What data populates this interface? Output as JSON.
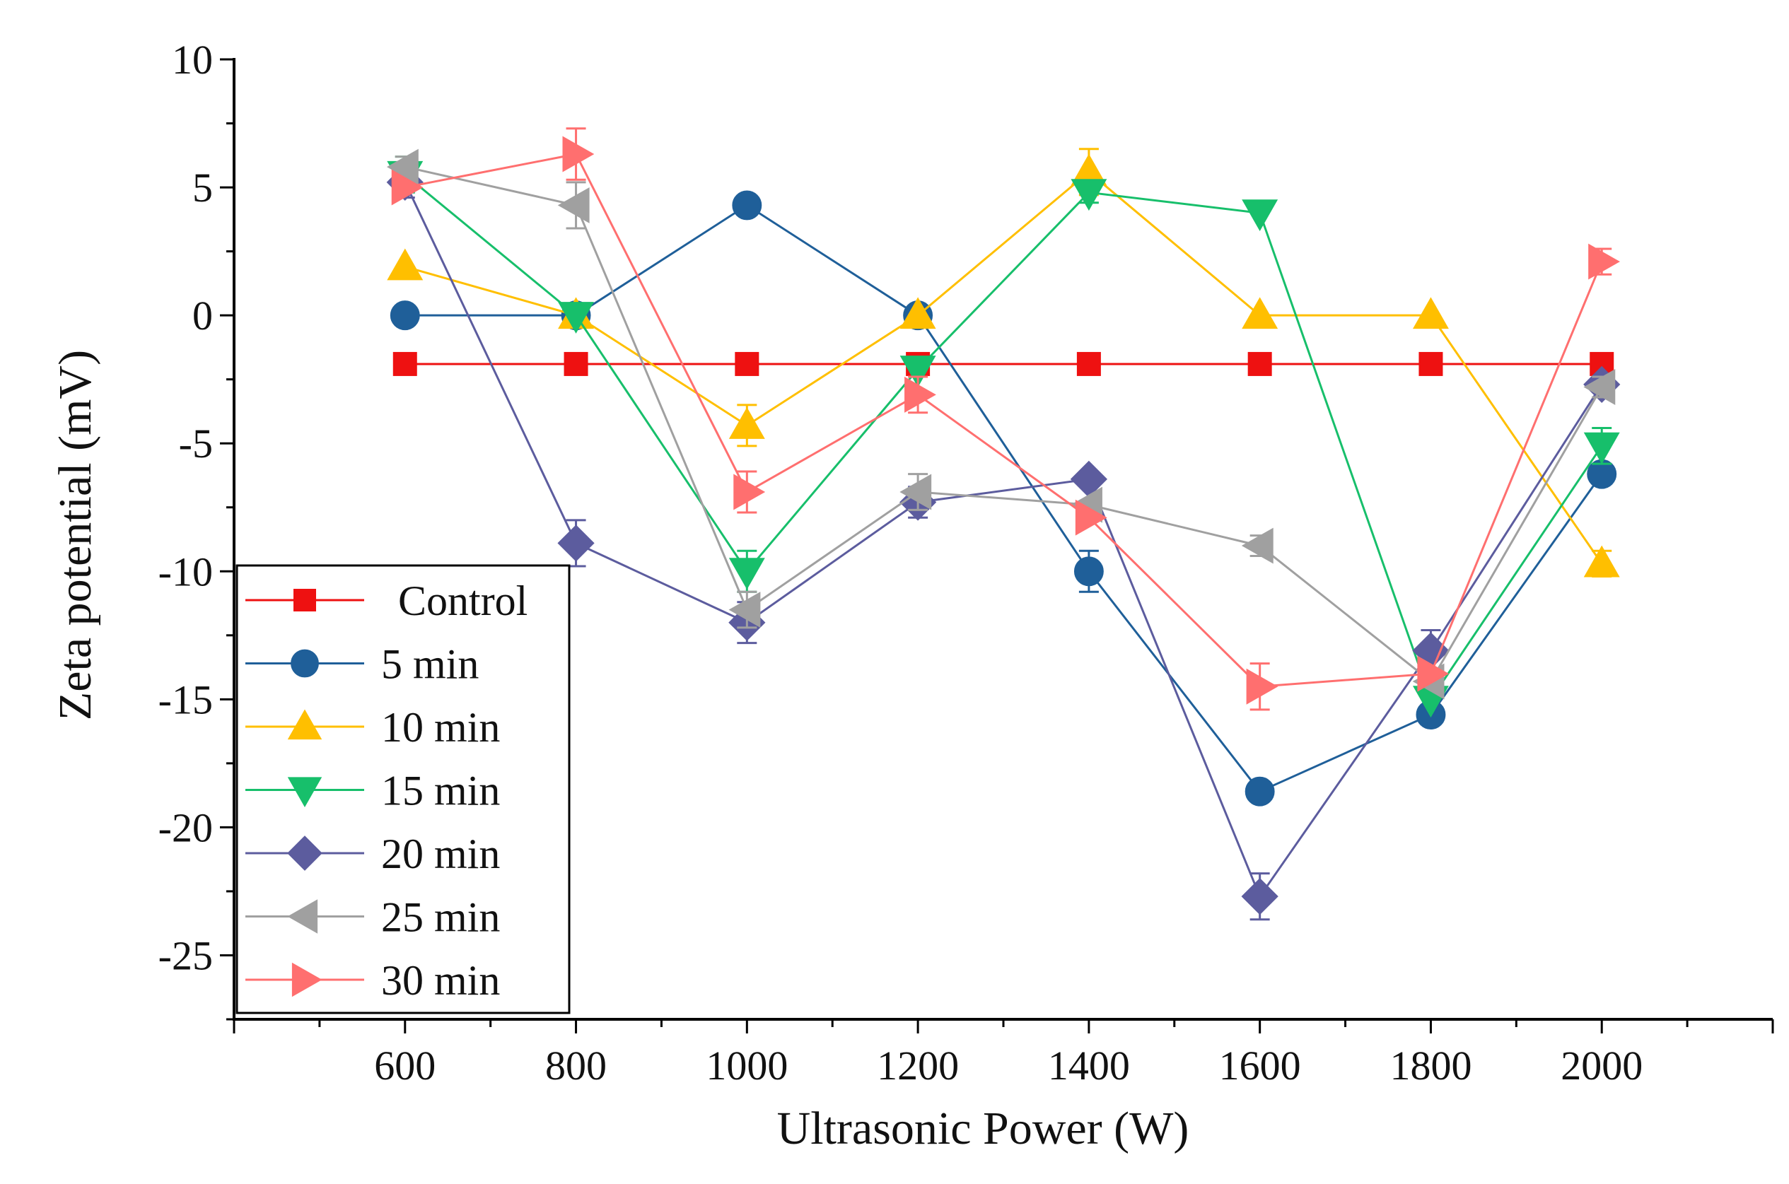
{
  "chart_data": {
    "type": "line",
    "title": "",
    "xlabel": "Ultrasonic Power (W)",
    "ylabel": "Zeta potential (mV)",
    "xlim": [
      400,
      2200
    ],
    "ylim": [
      -27.5,
      10
    ],
    "x": [
      600,
      800,
      1000,
      1200,
      1400,
      1600,
      1800,
      2000
    ],
    "x_tick_labels": [
      "600",
      "800",
      "1000",
      "1200",
      "1400",
      "1600",
      "1800",
      "2000"
    ],
    "y_ticks": [
      10,
      5,
      0,
      -5,
      -10,
      -15,
      -20,
      -25
    ],
    "y_tick_labels": [
      "10",
      "5",
      "0",
      "-5",
      "-10",
      "-15",
      "-20",
      "-25"
    ],
    "legend_position": "bottom-left",
    "series": [
      {
        "name": "Control",
        "color": "#ee1111",
        "marker": "square",
        "values": [
          -1.9,
          -1.9,
          -1.9,
          -1.9,
          -1.9,
          -1.9,
          -1.9,
          -1.9
        ],
        "errors": [
          0,
          0,
          0,
          0,
          0,
          0,
          0,
          0
        ]
      },
      {
        "name": "5 min",
        "color": "#1f5f99",
        "marker": "circle",
        "values": [
          0,
          0,
          4.3,
          0,
          -10.0,
          -18.6,
          -15.6,
          -6.2
        ],
        "errors": [
          0,
          0,
          0,
          0,
          0.8,
          0,
          0,
          0
        ]
      },
      {
        "name": "10 min",
        "color": "#ffbf00",
        "marker": "triangle-up",
        "values": [
          1.9,
          0,
          -4.3,
          0,
          5.6,
          0,
          0,
          -9.7
        ],
        "errors": [
          0,
          0,
          0.8,
          0,
          0.9,
          0,
          0,
          0.5
        ]
      },
      {
        "name": "15 min",
        "color": "#17bf6b",
        "marker": "triangle-down",
        "values": [
          5.5,
          0,
          -10.0,
          -2.1,
          4.8,
          4.0,
          -15.0,
          -5.1
        ],
        "errors": [
          0.7,
          0,
          0.8,
          0,
          0.4,
          0,
          0,
          0.7
        ]
      },
      {
        "name": "20 min",
        "color": "#5c5c9e",
        "marker": "diamond",
        "values": [
          5.2,
          -8.9,
          -12.0,
          -7.3,
          -6.4,
          -22.7,
          -13.1,
          -2.7
        ],
        "errors": [
          0.6,
          0.9,
          0.8,
          0.6,
          0,
          0.9,
          0.8,
          0
        ]
      },
      {
        "name": "25 min",
        "color": "#a0a0a0",
        "marker": "triangle-left",
        "values": [
          5.8,
          4.3,
          -11.5,
          -6.9,
          -7.4,
          -9.0,
          -14.3,
          -2.8
        ],
        "errors": [
          0.4,
          0.9,
          0.7,
          0.7,
          0,
          0.4,
          0,
          0.4
        ]
      },
      {
        "name": "30 min",
        "color": "#ff6f6f",
        "marker": "triangle-right",
        "values": [
          5.0,
          6.3,
          -6.9,
          -3.1,
          -7.9,
          -14.5,
          -14.0,
          2.1
        ],
        "errors": [
          0,
          1.0,
          0.8,
          0.7,
          0,
          0.9,
          0,
          0.5
        ]
      }
    ]
  }
}
